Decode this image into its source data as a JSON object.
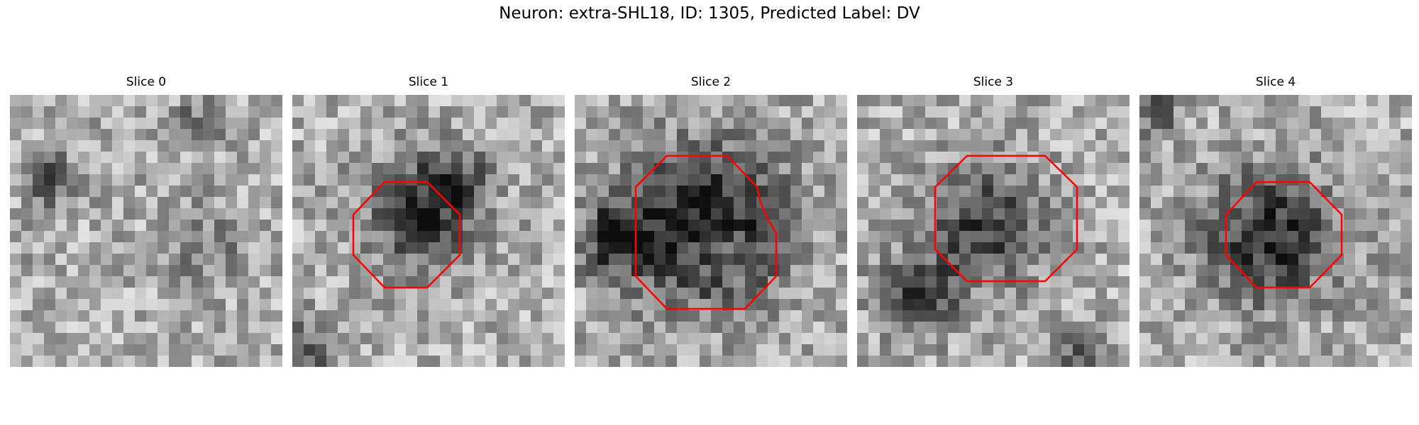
{
  "figure": {
    "title": "Neuron: extra-SHL18, ID: 1305, Predicted Label: DV"
  },
  "panels": [
    {
      "title": "Slice 0",
      "contour": false
    },
    {
      "title": "Slice 1",
      "contour": true
    },
    {
      "title": "Slice 2",
      "contour": true
    },
    {
      "title": "Slice 3",
      "contour": true
    },
    {
      "title": "Slice 4",
      "contour": true
    }
  ],
  "colors": {
    "contour": "#ff0000",
    "colormap": "gray"
  }
}
